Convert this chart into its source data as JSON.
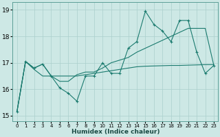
{
  "xlabel": "Humidex (Indice chaleur)",
  "xlim": [
    -0.5,
    23.5
  ],
  "ylim": [
    14.8,
    19.3
  ],
  "yticks": [
    15,
    16,
    17,
    18,
    19
  ],
  "xticks": [
    0,
    1,
    2,
    3,
    4,
    5,
    6,
    7,
    8,
    9,
    10,
    11,
    12,
    13,
    14,
    15,
    16,
    17,
    18,
    19,
    20,
    21,
    22,
    23
  ],
  "bg_color": "#cde8e5",
  "grid_color": "#aacfcc",
  "line_color": "#1a7a6e",
  "line1_y": [
    15.15,
    17.05,
    16.8,
    16.95,
    16.5,
    16.05,
    15.85,
    15.55,
    16.5,
    16.5,
    17.0,
    16.6,
    16.6,
    17.55,
    17.8,
    18.95,
    18.45,
    18.2,
    17.8,
    18.6,
    18.6,
    17.4,
    16.6,
    16.9
  ],
  "line2_y": [
    15.15,
    17.05,
    16.8,
    16.95,
    16.5,
    16.3,
    16.3,
    16.55,
    16.65,
    16.65,
    16.8,
    17.0,
    17.1,
    17.2,
    17.4,
    17.55,
    17.7,
    17.85,
    18.0,
    18.15,
    18.3,
    18.3,
    18.3,
    16.9
  ],
  "line3_y": [
    15.15,
    17.05,
    16.75,
    16.5,
    16.5,
    16.5,
    16.5,
    16.5,
    16.55,
    16.6,
    16.65,
    16.7,
    16.75,
    16.8,
    16.85,
    16.87,
    16.88,
    16.89,
    16.9,
    16.9,
    16.91,
    16.92,
    16.93,
    16.93
  ]
}
